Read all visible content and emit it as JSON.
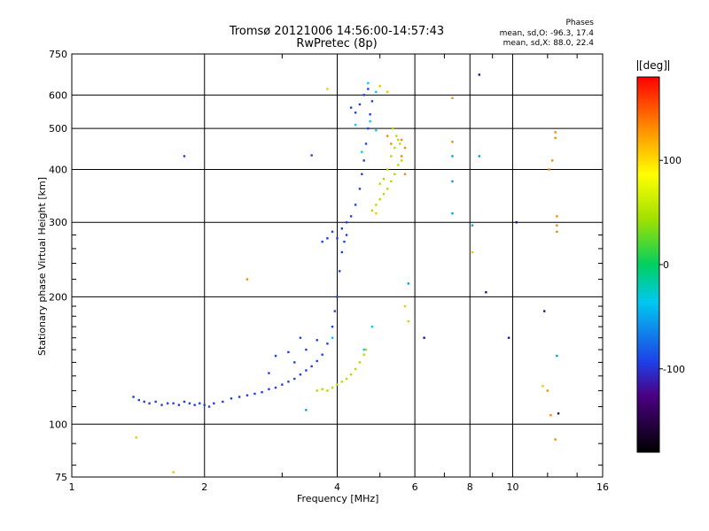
{
  "chart_data": {
    "type": "scatter",
    "title": "Tromsø 20121006 14:56:00-14:57:43",
    "subtitle": "RwPretec (8p)",
    "xlabel": "Frequency [MHz]",
    "ylabel": "Stationary phase Virtual Height [km]",
    "xscale": "log",
    "yscale": "log",
    "xlim": [
      1,
      16
    ],
    "ylim": [
      75,
      750
    ],
    "xticks": [
      1,
      2,
      4,
      6,
      8,
      10,
      16
    ],
    "yticks": [
      75,
      100,
      200,
      300,
      400,
      500,
      600,
      750
    ],
    "grid": true,
    "phase_stats": {
      "title": "Phases",
      "line1": "mean, sd,O: -96.3, 17.4",
      "line2": "mean, sd,X:  88.0, 22.4"
    },
    "colorbar": {
      "unit": "[deg]",
      "ticks": [
        100,
        0,
        -100
      ],
      "range": [
        -180,
        180
      ]
    },
    "series": [
      {
        "mode": "O",
        "phase": -95,
        "color": "#1e3fe6",
        "points": [
          [
            1.38,
            116
          ],
          [
            1.42,
            114
          ],
          [
            1.46,
            113
          ],
          [
            1.5,
            112
          ],
          [
            1.55,
            113
          ],
          [
            1.6,
            111
          ],
          [
            1.65,
            112
          ],
          [
            1.7,
            112
          ],
          [
            1.75,
            111
          ],
          [
            1.8,
            113
          ],
          [
            1.85,
            112
          ],
          [
            1.9,
            111
          ],
          [
            1.95,
            112
          ],
          [
            2.0,
            111
          ],
          [
            2.05,
            110
          ],
          [
            2.1,
            112
          ],
          [
            2.2,
            113
          ],
          [
            2.3,
            115
          ],
          [
            2.4,
            116
          ],
          [
            2.5,
            117
          ],
          [
            2.6,
            118
          ],
          [
            2.7,
            119
          ],
          [
            2.8,
            121
          ],
          [
            2.9,
            122
          ],
          [
            3.0,
            124
          ],
          [
            3.1,
            126
          ],
          [
            3.2,
            128
          ],
          [
            3.3,
            131
          ],
          [
            3.4,
            134
          ],
          [
            3.5,
            137
          ],
          [
            3.6,
            141
          ],
          [
            3.7,
            146
          ],
          [
            3.8,
            155
          ],
          [
            3.9,
            170
          ],
          [
            3.95,
            185
          ],
          [
            4.0,
            200
          ],
          [
            4.05,
            230
          ],
          [
            4.1,
            255
          ],
          [
            4.15,
            270
          ],
          [
            4.2,
            280
          ],
          [
            3.7,
            270
          ],
          [
            3.8,
            275
          ],
          [
            3.9,
            285
          ],
          [
            4.0,
            275
          ],
          [
            4.1,
            290
          ],
          [
            4.2,
            300
          ],
          [
            4.3,
            310
          ],
          [
            4.4,
            330
          ],
          [
            4.5,
            360
          ],
          [
            4.55,
            390
          ],
          [
            4.6,
            420
          ],
          [
            4.65,
            460
          ],
          [
            4.7,
            500
          ],
          [
            4.75,
            540
          ],
          [
            4.8,
            580
          ],
          [
            4.7,
            620
          ],
          [
            4.6,
            600
          ],
          [
            4.5,
            570
          ],
          [
            4.4,
            545
          ],
          [
            4.3,
            560
          ],
          [
            1.8,
            430
          ],
          [
            3.5,
            432
          ],
          [
            3.3,
            160
          ],
          [
            3.6,
            158
          ],
          [
            3.4,
            150
          ],
          [
            3.1,
            148
          ],
          [
            3.2,
            140
          ],
          [
            2.9,
            145
          ],
          [
            2.8,
            132
          ]
        ]
      },
      {
        "mode": "X",
        "phase": 90,
        "color": "#b8d800",
        "points": [
          [
            3.6,
            120
          ],
          [
            3.7,
            121
          ],
          [
            3.8,
            120
          ],
          [
            3.9,
            122
          ],
          [
            4.0,
            124
          ],
          [
            4.1,
            126
          ],
          [
            4.2,
            128
          ],
          [
            4.3,
            131
          ],
          [
            4.4,
            135
          ],
          [
            4.5,
            140
          ],
          [
            4.6,
            146
          ],
          [
            4.65,
            150
          ],
          [
            4.8,
            320
          ],
          [
            4.9,
            330
          ],
          [
            5.0,
            340
          ],
          [
            5.1,
            350
          ],
          [
            5.2,
            360
          ],
          [
            5.3,
            375
          ],
          [
            5.4,
            390
          ],
          [
            5.5,
            410
          ],
          [
            5.3,
            430
          ],
          [
            5.4,
            450
          ],
          [
            5.5,
            470
          ],
          [
            5.2,
            400
          ],
          [
            5.1,
            380
          ],
          [
            5.0,
            370
          ],
          [
            5.6,
            420
          ],
          [
            5.55,
            460
          ],
          [
            5.45,
            480
          ],
          [
            5.35,
            500
          ]
        ]
      },
      {
        "mode": "O",
        "phase": -5,
        "color": "#00c8f0",
        "points": [
          [
            4.9,
            610
          ],
          [
            4.7,
            640
          ],
          [
            4.75,
            520
          ],
          [
            4.9,
            495
          ],
          [
            4.4,
            510
          ],
          [
            4.55,
            440
          ],
          [
            3.9,
            160
          ],
          [
            4.6,
            150
          ],
          [
            4.8,
            170
          ]
        ]
      },
      {
        "mode": "X",
        "phase": 140,
        "color": "#f08c00",
        "points": [
          [
            5.2,
            480
          ],
          [
            5.3,
            460
          ],
          [
            5.6,
            470
          ],
          [
            5.7,
            450
          ],
          [
            5.6,
            430
          ],
          [
            5.7,
            390
          ],
          [
            7.3,
            590
          ],
          [
            7.3,
            465
          ],
          [
            12.5,
            490
          ],
          [
            12.5,
            475
          ],
          [
            12.3,
            420
          ],
          [
            12.1,
            400
          ],
          [
            12.6,
            310
          ],
          [
            12.6,
            295
          ],
          [
            12.6,
            285
          ],
          [
            12.5,
            92
          ],
          [
            2.5,
            220
          ],
          [
            12.0,
            120
          ],
          [
            12.2,
            105
          ]
        ]
      },
      {
        "mode": "O",
        "phase": -45,
        "color": "#00a0d8",
        "points": [
          [
            7.3,
            430
          ],
          [
            7.3,
            375
          ],
          [
            7.3,
            315
          ],
          [
            8.4,
            430
          ],
          [
            12.6,
            145
          ],
          [
            5.8,
            215
          ],
          [
            3.4,
            108
          ],
          [
            8.1,
            295
          ]
        ]
      },
      {
        "mode": "X",
        "phase": 130,
        "color": "#e8c800",
        "points": [
          [
            3.8,
            620
          ],
          [
            5.0,
            630
          ],
          [
            5.2,
            610
          ],
          [
            5.8,
            175
          ],
          [
            8.1,
            255
          ],
          [
            1.7,
            77
          ],
          [
            4.9,
            315
          ],
          [
            5.7,
            190
          ],
          [
            1.4,
            93
          ],
          [
            11.7,
            123
          ]
        ]
      },
      {
        "mode": "O",
        "phase": -130,
        "color": "#2a0aa0",
        "points": [
          [
            8.4,
            670
          ],
          [
            10.2,
            300
          ],
          [
            8.7,
            205
          ],
          [
            9.8,
            160
          ],
          [
            6.3,
            160
          ],
          [
            12.7,
            106
          ],
          [
            11.8,
            185
          ]
        ]
      }
    ]
  }
}
